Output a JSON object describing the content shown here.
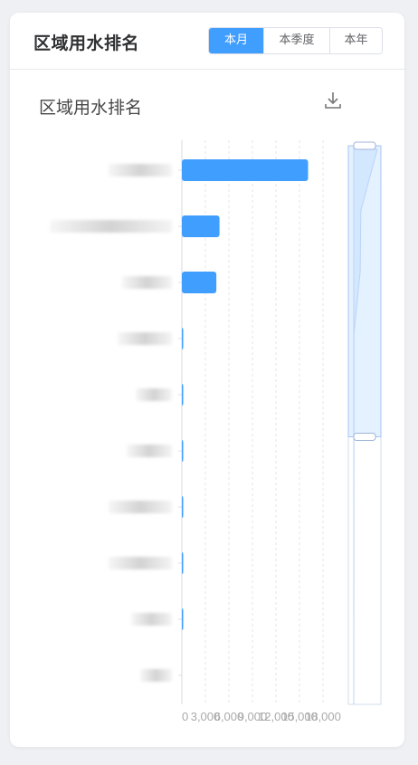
{
  "header": {
    "title": "区域用水排名",
    "tabs": [
      {
        "label": "本月",
        "active": true
      },
      {
        "label": "本季度",
        "active": false
      },
      {
        "label": "本年",
        "active": false
      }
    ]
  },
  "chart_data": {
    "type": "bar",
    "orientation": "horizontal",
    "title": "区域用水排名",
    "categories": [
      "",
      "",
      "",
      "",
      "",
      "",
      "",
      "",
      "",
      ""
    ],
    "values": [
      16100,
      4800,
      4400,
      150,
      130,
      110,
      70,
      60,
      20,
      0
    ],
    "x_ticks": [
      "0",
      "3,000",
      "6,000",
      "9,000",
      "12,000",
      "15,000",
      "18,000"
    ],
    "xlim": [
      0,
      18000
    ],
    "grid": "vertical dashed",
    "bar_color": "#409eff",
    "data_zoom": {
      "orientation": "vertical",
      "range_percent": [
        0,
        50
      ]
    }
  },
  "icons": {
    "download": "download-icon"
  },
  "colors": {
    "accent": "#409eff"
  }
}
